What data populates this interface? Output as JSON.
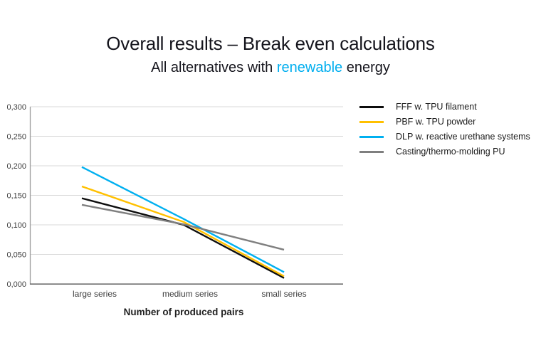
{
  "slide": {
    "title": "Overall results – Break even calculations",
    "subtitle": {
      "prefix": "All alternatives with ",
      "highlight": "renewable",
      "suffix": " energy",
      "highlight_color": "#00aeef"
    }
  },
  "chart_data": {
    "type": "line",
    "categories": [
      "large series",
      "medium series",
      "small series"
    ],
    "series": [
      {
        "name": "FFF w. TPU filament",
        "color": "#0d0d0d",
        "values": [
          0.145,
          0.1,
          0.01
        ]
      },
      {
        "name": "PBF w. TPU powder",
        "color": "#ffc000",
        "values": [
          0.165,
          0.105,
          0.013
        ]
      },
      {
        "name": "DLP w. reactive urethane systems",
        "color": "#00b0f0",
        "values": [
          0.198,
          0.11,
          0.02
        ]
      },
      {
        "name": "Casting/thermo-molding PU",
        "color": "#7f7f7f",
        "values": [
          0.134,
          0.101,
          0.058
        ]
      }
    ],
    "xlabel": "Number of produced pairs",
    "ylabel": "",
    "ylim": [
      0,
      0.3
    ],
    "ytick_labels": [
      "0,300",
      "0,250",
      "0,200",
      "0,150",
      "0,100",
      "0,050",
      "0,000"
    ],
    "ytick_values": [
      0.3,
      0.25,
      0.2,
      0.15,
      0.1,
      0.05,
      0
    ],
    "decimal_separator": ",",
    "grid": true,
    "legend_position": "right"
  }
}
